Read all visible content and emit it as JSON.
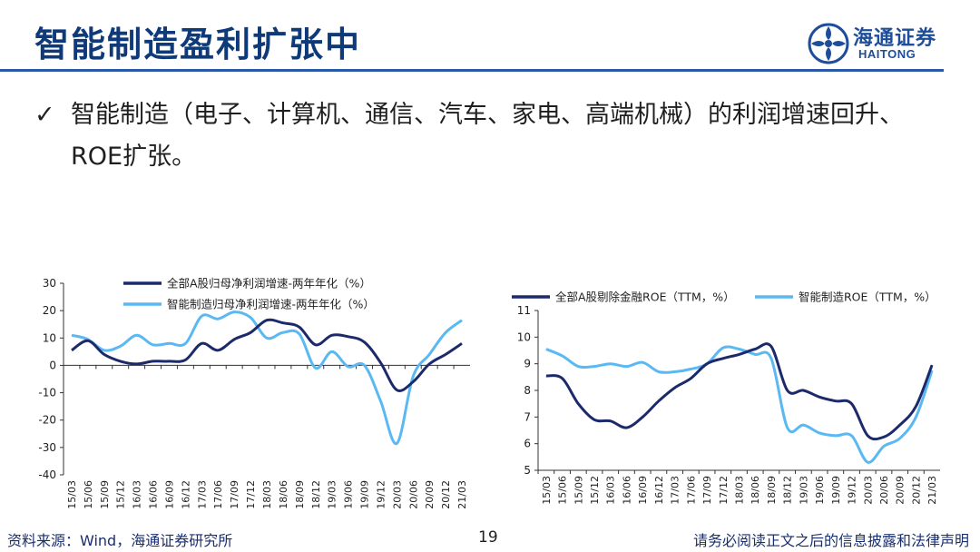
{
  "header": {
    "title": "智能制造盈利扩张中",
    "logo_cn": "海通证券",
    "logo_en": "HAITONG"
  },
  "bullet": {
    "mark": "✓",
    "text": "智能制造（电子、计算机、通信、汽车、家电、高端机械）的利润增速回升、ROE扩张。"
  },
  "footer": {
    "source": "资料来源：Wind，海通证券研究所",
    "page": "19",
    "disclaimer": "请务必阅读正文之后的信息披露和法律声明"
  },
  "colors": {
    "title": "#0e3a7a",
    "rule": "#2a5aa6",
    "series_dark": "#1c2a6b",
    "series_light": "#5ab8f2"
  },
  "chart_data": [
    {
      "type": "line",
      "title": "",
      "xlabel": "",
      "ylabel": "",
      "ylim": [
        -40,
        30
      ],
      "yticks": [
        30,
        20,
        10,
        0,
        -10,
        -20,
        -30,
        -40
      ],
      "grid": false,
      "legend_position": "top",
      "x_tick_labels": [
        "15/03",
        "15/06",
        "15/09",
        "15/12",
        "16/03",
        "16/06",
        "16/09",
        "16/12",
        "17/03",
        "17/06",
        "17/09",
        "17/12",
        "18/03",
        "18/06",
        "18/09",
        "18/12",
        "19/03",
        "19/06",
        "19/09",
        "19/12",
        "20/03",
        "20/06",
        "20/09",
        "20/12",
        "21/03"
      ],
      "series": [
        {
          "name": "全部A股归母净利润增速-两年年化（%）",
          "color": "#1c2a6b",
          "values": [
            5.5,
            9.0,
            4.0,
            1.5,
            0.5,
            1.5,
            1.5,
            2.0,
            8.0,
            5.5,
            9.5,
            12.0,
            16.5,
            15.5,
            14.0,
            7.5,
            11.0,
            10.5,
            8.5,
            1.0,
            -9.0,
            -6.0,
            0.5,
            4.0,
            8.0
          ]
        },
        {
          "name": "智能制造归母净利润增速-两年年化（%）",
          "color": "#5ab8f2",
          "values": [
            11.0,
            9.5,
            5.5,
            7.0,
            11.0,
            7.5,
            8.0,
            8.0,
            18.0,
            17.0,
            19.5,
            17.5,
            10.0,
            12.0,
            11.5,
            -1.0,
            5.0,
            -0.5,
            0.0,
            -13.0,
            -28.5,
            -4.0,
            4.0,
            12.0,
            16.5
          ]
        }
      ]
    },
    {
      "type": "line",
      "title": "",
      "xlabel": "",
      "ylabel": "",
      "ylim": [
        5,
        11
      ],
      "yticks": [
        11,
        10,
        9,
        8,
        7,
        6,
        5
      ],
      "grid": false,
      "legend_position": "top",
      "x_tick_labels": [
        "15/03",
        "15/06",
        "15/09",
        "15/12",
        "16/03",
        "16/06",
        "16/09",
        "16/12",
        "17/03",
        "17/06",
        "17/09",
        "17/12",
        "18/03",
        "18/06",
        "18/09",
        "18/12",
        "19/03",
        "19/06",
        "19/09",
        "19/12",
        "20/03",
        "20/06",
        "20/09",
        "20/12",
        "21/03"
      ],
      "series": [
        {
          "name": "全部A股剔除金融ROE（TTM，%）",
          "color": "#1c2a6b",
          "values": [
            8.55,
            8.45,
            7.5,
            6.9,
            6.85,
            6.6,
            7.0,
            7.6,
            8.1,
            8.45,
            9.0,
            9.2,
            9.35,
            9.55,
            9.65,
            8.0,
            8.0,
            7.75,
            7.6,
            7.5,
            6.3,
            6.25,
            6.7,
            7.4,
            8.95
          ]
        },
        {
          "name": "智能制造ROE（TTM，%）",
          "color": "#5ab8f2",
          "values": [
            9.55,
            9.3,
            8.9,
            8.9,
            9.0,
            8.9,
            9.05,
            8.7,
            8.7,
            8.8,
            9.0,
            9.6,
            9.55,
            9.35,
            9.2,
            6.6,
            6.7,
            6.4,
            6.3,
            6.3,
            5.3,
            5.9,
            6.2,
            7.0,
            8.75
          ]
        }
      ]
    }
  ]
}
